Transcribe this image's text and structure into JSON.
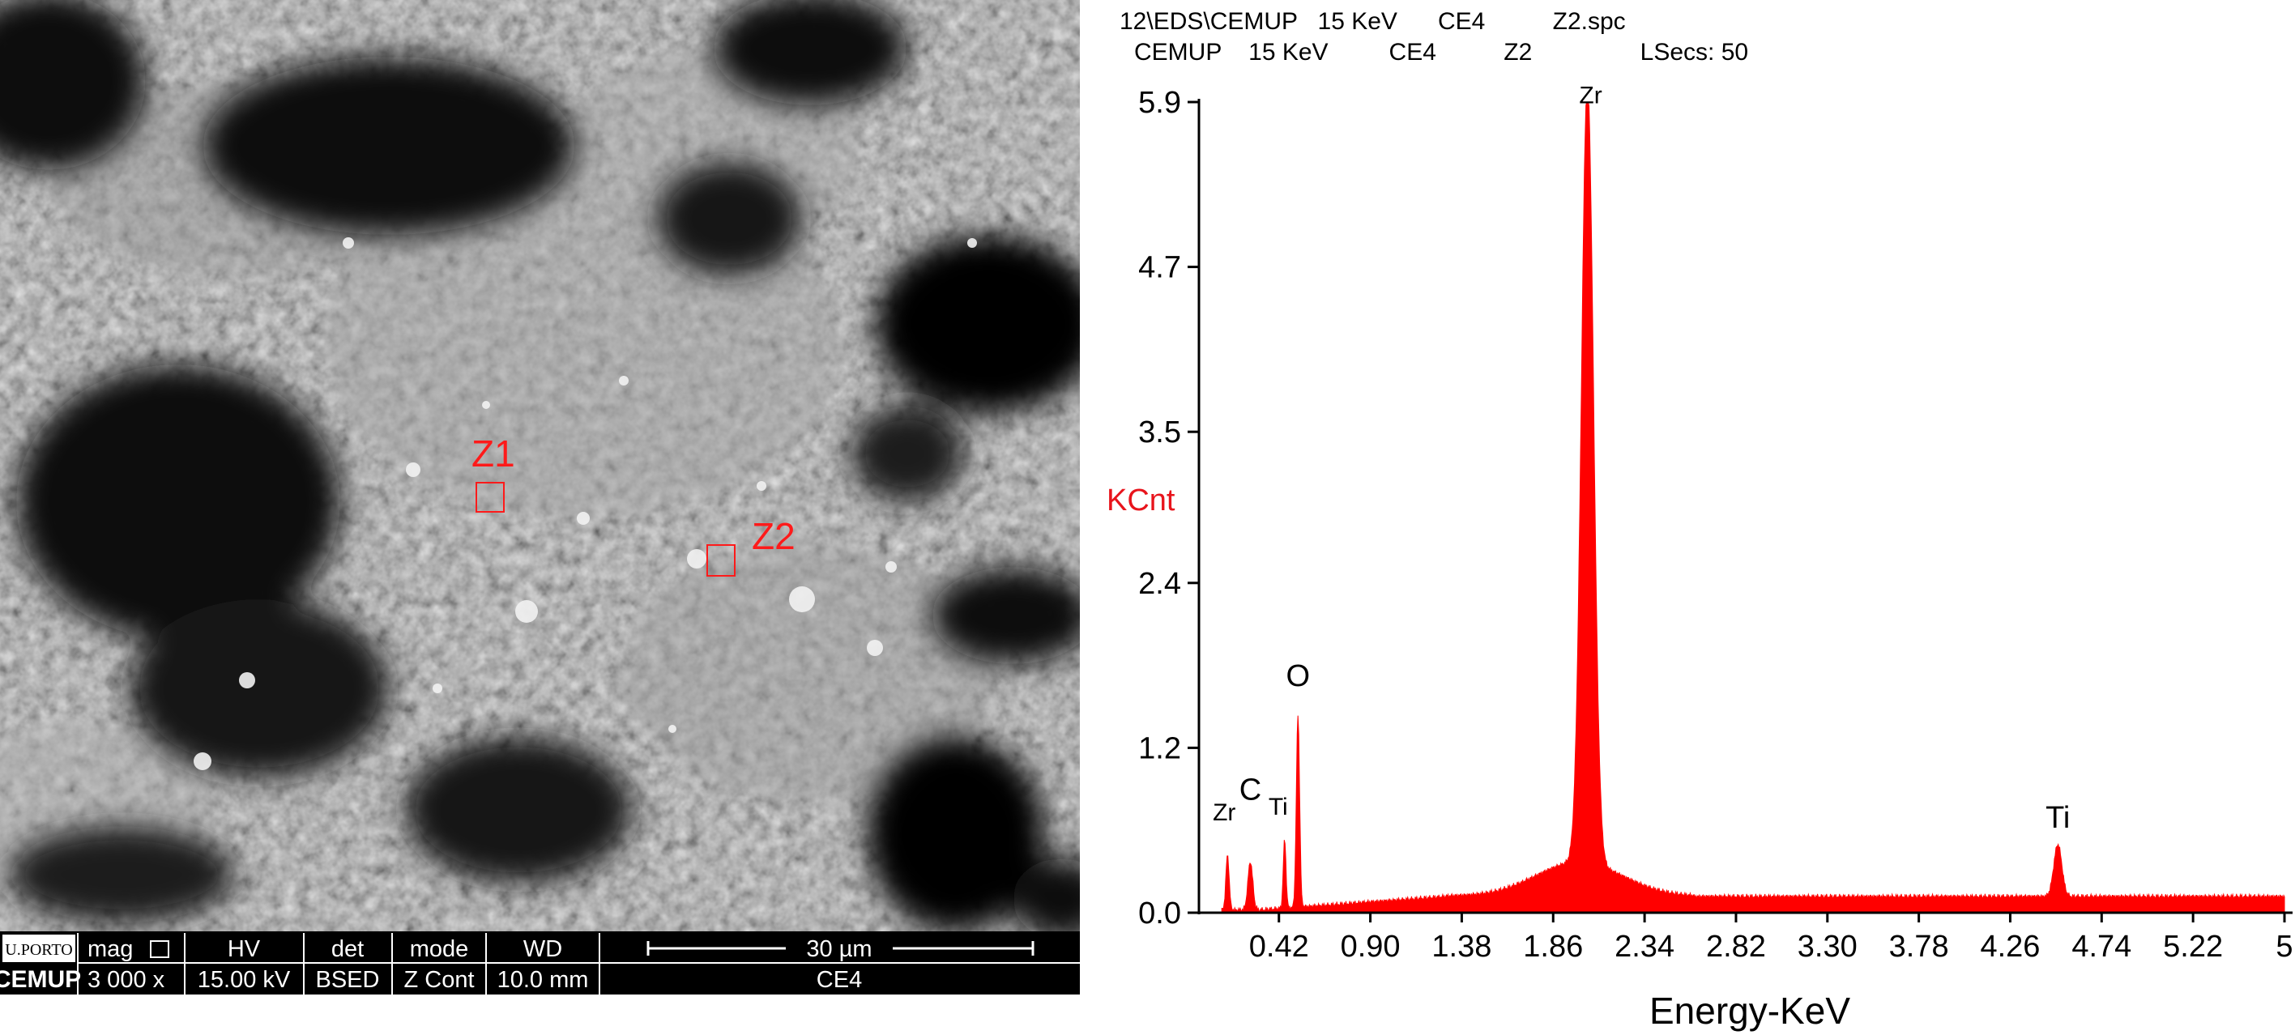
{
  "sem": {
    "markers": [
      "Z1",
      "Z2"
    ],
    "info_bar": {
      "logo_top": "U.PORTO",
      "logo_bottom": "CEMUP",
      "mag_label": "mag",
      "mag_value": "3 000 x",
      "hv_label": "HV",
      "hv_value": "15.00 kV",
      "det_label": "det",
      "det_value": "BSED",
      "mode_label": "mode",
      "mode_value": "Z Cont",
      "wd_label": "WD",
      "wd_value": "10.0 mm",
      "scale_label": "30 µm",
      "sample_label": "CE4"
    },
    "colors": {
      "marker": "#ff1a1a",
      "info_bar_bg": "#000000"
    }
  },
  "spectrum": {
    "header_line1": "12\\EDS\\CEMUP   15 KeV      CE4          Z2.spc",
    "header_line2": "CEMUP    15 KeV         CE4          Z2                LSecs: 50"
  },
  "chart_data": {
    "type": "area",
    "title": "",
    "xlabel": "Energy-KeV",
    "ylabel": "KCnt",
    "ylabel_color": "#e8141c",
    "series_color": "#ff0000",
    "xlim": [
      0.0,
      5.7
    ],
    "ylim": [
      0.0,
      5.9
    ],
    "x_ticks": [
      "0.42",
      "0.90",
      "1.38",
      "1.86",
      "2.34",
      "2.82",
      "3.30",
      "3.78",
      "4.26",
      "4.74",
      "5.22",
      "5"
    ],
    "y_ticks": [
      "0.0",
      "1.2",
      "2.4",
      "3.5",
      "4.7",
      "5.9"
    ],
    "peaks": [
      {
        "label": "Zr",
        "x": 0.15,
        "y": 0.4
      },
      {
        "label": "C",
        "x": 0.27,
        "y": 0.35
      },
      {
        "label": "Ti",
        "x": 0.45,
        "y": 0.5
      },
      {
        "label": "O",
        "x": 0.52,
        "y": 1.4
      },
      {
        "label": "Zr",
        "x": 2.04,
        "y": 5.7
      },
      {
        "label": "Ti",
        "x": 4.51,
        "y": 0.38
      }
    ],
    "background_level": 0.12,
    "grid": false,
    "legend": "none"
  }
}
